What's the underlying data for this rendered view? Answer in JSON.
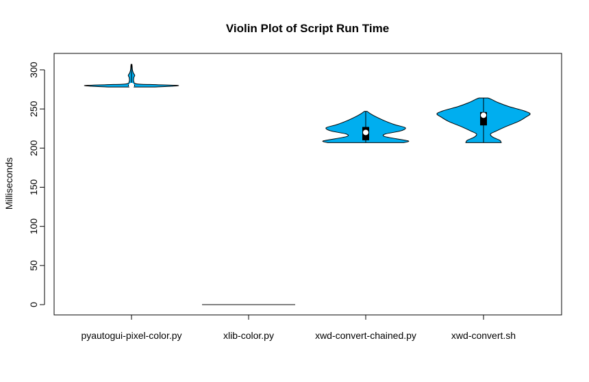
{
  "chart_data": {
    "type": "violin",
    "title": "Violin Plot of Script Run Time",
    "xlabel": "",
    "ylabel": "Milliseconds",
    "ylim": [
      -12,
      320
    ],
    "yticks": [
      0,
      50,
      100,
      150,
      200,
      250,
      300
    ],
    "fill_color": "#00AEEF",
    "categories": [
      "pyautogui-pixel-color.py",
      "xlib-color.py",
      "xwd-convert-chained.py",
      "xwd-convert.sh"
    ],
    "violins": [
      {
        "min": 278,
        "max": 307,
        "q1": 279,
        "median": 280,
        "q3": 281,
        "profile": [
          [
            278,
            0.5
          ],
          [
            279,
            0.85
          ],
          [
            280,
            1.0
          ],
          [
            281,
            0.55
          ],
          [
            282,
            0.12
          ],
          [
            285,
            0.05
          ],
          [
            290,
            0.05
          ],
          [
            293,
            0.07
          ],
          [
            296,
            0.04
          ],
          [
            300,
            0.02
          ],
          [
            304,
            0.015
          ],
          [
            307,
            0.01
          ]
        ]
      },
      {
        "min": 0,
        "max": 0,
        "q1": 0,
        "median": 0,
        "q3": 0,
        "profile": [
          [
            0,
            1.0
          ]
        ]
      },
      {
        "min": 207,
        "max": 247,
        "q1": 210,
        "median": 220,
        "q3": 227,
        "profile": [
          [
            207,
            0.82
          ],
          [
            209,
            0.92
          ],
          [
            212,
            0.65
          ],
          [
            215,
            0.4
          ],
          [
            218,
            0.42
          ],
          [
            222,
            0.75
          ],
          [
            226,
            0.85
          ],
          [
            230,
            0.62
          ],
          [
            235,
            0.4
          ],
          [
            240,
            0.22
          ],
          [
            244,
            0.1
          ],
          [
            247,
            0.03
          ]
        ]
      },
      {
        "min": 207,
        "max": 264,
        "q1": 229,
        "median": 242,
        "q3": 246,
        "profile": [
          [
            207,
            0.38
          ],
          [
            210,
            0.35
          ],
          [
            214,
            0.2
          ],
          [
            218,
            0.15
          ],
          [
            222,
            0.28
          ],
          [
            228,
            0.5
          ],
          [
            234,
            0.75
          ],
          [
            240,
            0.92
          ],
          [
            244,
            1.0
          ],
          [
            248,
            0.85
          ],
          [
            253,
            0.55
          ],
          [
            258,
            0.32
          ],
          [
            262,
            0.18
          ],
          [
            264,
            0.1
          ]
        ]
      }
    ]
  }
}
